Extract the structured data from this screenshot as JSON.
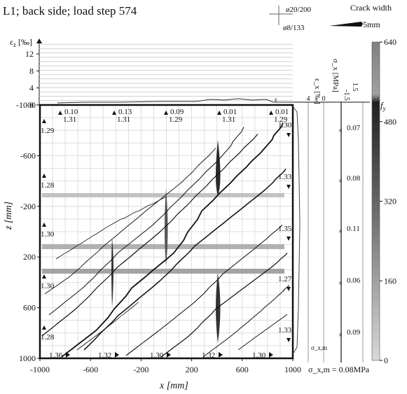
{
  "title": "L1; back side; load step 574",
  "legend": {
    "rebar_x": "ø20/200",
    "rebar_z": "ø8/133",
    "crack_width_label": "Crack width",
    "crack_width_value": "5mm"
  },
  "axes": {
    "x_label": "x [mm]",
    "z_label": "z [mm]",
    "x_ticks": [
      "-1000",
      "-600",
      "-200",
      "200",
      "600",
      "1000"
    ],
    "z_ticks": [
      "-1000",
      "-600",
      "-200",
      "200",
      "600",
      "1000"
    ],
    "eps_z_label": "ε_z [‰]",
    "eps_z_ticks": [
      "12",
      "8",
      "4",
      "0"
    ],
    "eps_x_label": "ε_x [‰]",
    "eps_x_ticks": [
      "4",
      "0"
    ],
    "sigma_label": "σ_x [MPa]",
    "sigma_ticks": [
      "-1.5",
      "1.5"
    ],
    "eps_marker": "ε"
  },
  "colorbar": {
    "label": "f_y",
    "ticks": [
      "640",
      "480",
      "320",
      "160",
      "0"
    ],
    "colors": [
      "#808080",
      "#a0a0a0",
      "#202020",
      "#4a4a4a",
      "#707070",
      "#a8a8a8",
      "#d8d8d8"
    ]
  },
  "top_values": [
    {
      "a": "0.10",
      "b": "1.31"
    },
    {
      "a": "0.13",
      "b": "1.31"
    },
    {
      "a": "0.09",
      "b": "1.29"
    },
    {
      "a": "0.01",
      "b": "1.31"
    },
    {
      "a": "0.01",
      "b": "1.29"
    }
  ],
  "left_values": [
    "1.29",
    "1.28",
    "1.30",
    "1.30",
    "1.28"
  ],
  "right_values": [
    "1.30",
    "1.33",
    "1.35",
    "1.27",
    "1.33"
  ],
  "bottom_values": [
    "1.36",
    "1.32",
    "1.30",
    "1.32",
    "1.30"
  ],
  "sigma_values": [
    "0.07",
    "0.08",
    "0.11",
    "0.06",
    "0.09"
  ],
  "sigma_xm": {
    "axis_label": "σ_x,m",
    "value_text": "σ_x,m = 0.08MPa"
  }
}
